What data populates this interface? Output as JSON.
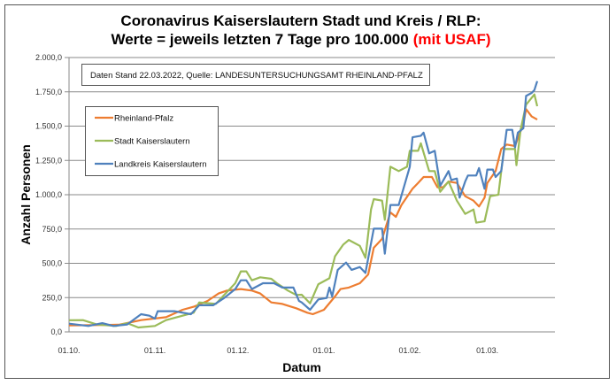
{
  "chart_data": {
    "type": "line",
    "title_line1": "Coronavirus Kaiserslautern Stadt und Kreis / RLP:",
    "title_line2": "Werte = jeweils letzten 7 Tage pro 100.000",
    "title_highlight": "(mit USAF)",
    "title_highlight_color": "#FF0000",
    "annotation": "Daten Stand 22.03.2022, Quelle: LANDESUNTERSUCHUNGSAMT RHEINLAND-PFALZ",
    "xlabel": "Datum",
    "ylabel": "Anzahl Personen",
    "ylim": [
      0,
      2000
    ],
    "xlim_days": [
      0,
      176
    ],
    "x_unit": "days since 01.10.2021",
    "yticks": [
      0,
      250,
      500,
      750,
      1000,
      1250,
      1500,
      1750,
      2000
    ],
    "ytick_labels": [
      "0,0",
      "250,0",
      "500,0",
      "750,0",
      "1.000,0",
      "1.250,0",
      "1.500,0",
      "1.750,0",
      "2.000,0"
    ],
    "xticks": [
      {
        "day": 0,
        "label": "01.10."
      },
      {
        "day": 31,
        "label": "01.11."
      },
      {
        "day": 61,
        "label": "01.12."
      },
      {
        "day": 92,
        "label": "01.01."
      },
      {
        "day": 123,
        "label": "01.02."
      },
      {
        "day": 151,
        "label": "01.03."
      }
    ],
    "grid": true,
    "legend_position": "top-left",
    "series": [
      {
        "name": "Rheinland-Pfalz",
        "color": "#ED7D31",
        "x": [
          0,
          18,
          26,
          35,
          41,
          45,
          50,
          54,
          57,
          62,
          66,
          69,
          73,
          77,
          82,
          86,
          88,
          92,
          96,
          98,
          101,
          105,
          108,
          110,
          113,
          116,
          118,
          120,
          124,
          126,
          128,
          131,
          133,
          135,
          137,
          140,
          143,
          146,
          148,
          150,
          151,
          154,
          156,
          158,
          161,
          164,
          165,
          167,
          169
        ],
        "y": [
          47,
          52,
          86,
          107,
          161,
          183,
          226,
          280,
          301,
          312,
          301,
          280,
          215,
          204,
          172,
          140,
          129,
          161,
          258,
          312,
          323,
          355,
          419,
          613,
          678,
          871,
          839,
          925,
          1043,
          1086,
          1129,
          1129,
          1054,
          1054,
          1096,
          1086,
          989,
          957,
          914,
          979,
          1086,
          1172,
          1333,
          1366,
          1355,
          1516,
          1624,
          1570,
          1548
        ]
      },
      {
        "name": "Stadt Kaiserslautern",
        "color": "#9BBB59",
        "x": [
          0,
          5,
          10,
          17,
          21,
          25,
          31,
          35,
          41,
          45,
          47,
          53,
          56,
          60,
          62,
          64,
          66,
          69,
          73,
          75,
          79,
          82,
          84,
          87,
          90,
          94,
          96,
          99,
          101,
          105,
          107,
          109,
          110,
          113,
          114,
          116,
          119,
          122,
          123,
          126,
          127,
          130,
          132,
          134,
          137,
          140,
          143,
          146,
          147,
          150,
          152,
          155,
          157,
          161,
          161.5,
          163,
          165,
          168,
          169
        ],
        "y": [
          85,
          86,
          54,
          43,
          64,
          32,
          43,
          86,
          118,
          140,
          215,
          204,
          269,
          355,
          441,
          441,
          376,
          398,
          387,
          355,
          301,
          269,
          271,
          208,
          348,
          391,
          551,
          637,
          670,
          627,
          540,
          892,
          968,
          957,
          817,
          1204,
          1172,
          1204,
          1320,
          1320,
          1375,
          1172,
          1172,
          1021,
          1096,
          957,
          860,
          892,
          796,
          806,
          989,
          1000,
          1333,
          1333,
          1215,
          1473,
          1656,
          1731,
          1645
        ]
      },
      {
        "name": "Landkreis Kaiserslautern",
        "color": "#4F81BD",
        "x": [
          0,
          7,
          12,
          16,
          21,
          26,
          29,
          31,
          32,
          38,
          44,
          47,
          52,
          56,
          60,
          62,
          64,
          66,
          70,
          74,
          77,
          81,
          83,
          84,
          87,
          90,
          93,
          94,
          95,
          97,
          100,
          102,
          105,
          107,
          110,
          113,
          114,
          116,
          119,
          123,
          124,
          127,
          128,
          130,
          132,
          134,
          137,
          138,
          140,
          141,
          143,
          144,
          147,
          148,
          150,
          151,
          153,
          154,
          156,
          158,
          160,
          161,
          162,
          164,
          165,
          167,
          168,
          169
        ],
        "y": [
          60,
          43,
          64,
          43,
          54,
          129,
          118,
          97,
          151,
          151,
          129,
          194,
          194,
          247,
          312,
          376,
          376,
          312,
          355,
          355,
          323,
          323,
          226,
          215,
          161,
          237,
          247,
          323,
          258,
          452,
          505,
          452,
          473,
          430,
          752,
          752,
          570,
          925,
          925,
          1204,
          1419,
          1430,
          1452,
          1301,
          1320,
          1065,
          1172,
          1107,
          1118,
          979,
          1096,
          1140,
          1140,
          1194,
          1043,
          1183,
          1183,
          1129,
          1172,
          1473,
          1473,
          1344,
          1452,
          1484,
          1720,
          1742,
          1763,
          1828
        ]
      }
    ]
  }
}
